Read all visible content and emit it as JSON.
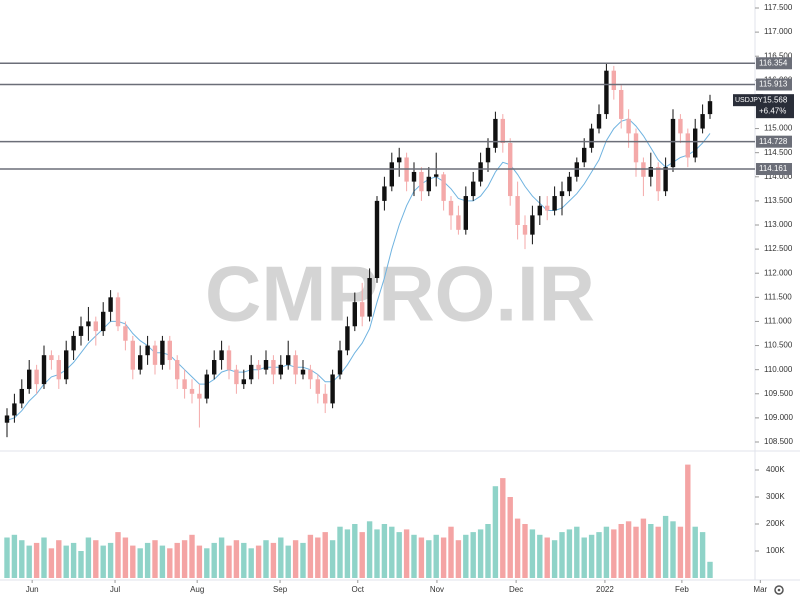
{
  "chart_data": {
    "type": "candlestick",
    "symbol": "USDJPY",
    "watermark": "CMPRO.IR",
    "last": {
      "value": 115.568,
      "change": "+6.47%"
    },
    "up_color": "#111111",
    "down_color": "#f4a9a9",
    "ma_color": "#6fb3e0",
    "volume_up_color": "#8fd3c8",
    "volume_down_color": "#f4a4a4",
    "level_color": "#6b6e78",
    "ylim": [
      108.334,
      117.666
    ],
    "yticks": [
      {
        "value": 108.5,
        "label": "108.500"
      },
      {
        "value": 109,
        "label": "109.000"
      },
      {
        "value": 109.5,
        "label": "109.500"
      },
      {
        "value": 110,
        "label": "110.000"
      },
      {
        "value": 110.5,
        "label": "110.500"
      },
      {
        "value": 111,
        "label": "111.000"
      },
      {
        "value": 111.5,
        "label": "111.500"
      },
      {
        "value": 112,
        "label": "112.000"
      },
      {
        "value": 112.5,
        "label": "112.500"
      },
      {
        "value": 113,
        "label": "113.000"
      },
      {
        "value": 113.5,
        "label": "113.500"
      },
      {
        "value": 114,
        "label": "114.000"
      },
      {
        "value": 114.5,
        "label": "114.500"
      },
      {
        "value": 115,
        "label": "115.000"
      },
      {
        "value": 115.5,
        "label": "115.500"
      },
      {
        "value": 116,
        "label": "116.000"
      },
      {
        "value": 116.5,
        "label": "116.500"
      },
      {
        "value": 117,
        "label": "117.000"
      },
      {
        "value": 117.5,
        "label": "117.500"
      }
    ],
    "levels": [
      116.354,
      115.913,
      114.728,
      114.161
    ],
    "xlim": [
      -0.946,
      101.08
    ],
    "xticks": [
      {
        "value": 3.4,
        "label": "Jun"
      },
      {
        "value": 14.6,
        "label": "Jul"
      },
      {
        "value": 25.7,
        "label": "Aug"
      },
      {
        "value": 36.9,
        "label": "Sep"
      },
      {
        "value": 47.4,
        "label": "Oct"
      },
      {
        "value": 58.1,
        "label": "Nov"
      },
      {
        "value": 68.8,
        "label": "Dec"
      },
      {
        "value": 80.8,
        "label": "2022"
      },
      {
        "value": 91.2,
        "label": "Feb"
      },
      {
        "value": 101.8,
        "label": "Mar"
      }
    ],
    "ohlc": [
      [
        108.9,
        109.2,
        108.6,
        109.05
      ],
      [
        109.05,
        109.5,
        108.9,
        109.3
      ],
      [
        109.3,
        109.8,
        109.2,
        109.6
      ],
      [
        109.6,
        110.2,
        109.5,
        110.0
      ],
      [
        110.0,
        110.1,
        109.5,
        109.7
      ],
      [
        109.7,
        110.5,
        109.6,
        110.3
      ],
      [
        110.3,
        110.4,
        110.0,
        110.2
      ],
      [
        110.2,
        110.3,
        109.6,
        109.8
      ],
      [
        109.8,
        110.6,
        109.7,
        110.4
      ],
      [
        110.4,
        110.8,
        110.2,
        110.7
      ],
      [
        110.7,
        111.1,
        110.5,
        110.9
      ],
      [
        110.9,
        111.3,
        110.6,
        111.0
      ],
      [
        111.0,
        111.1,
        110.5,
        110.8
      ],
      [
        110.8,
        111.4,
        110.7,
        111.2
      ],
      [
        111.2,
        111.65,
        111.0,
        111.5
      ],
      [
        111.5,
        111.6,
        110.8,
        110.9
      ],
      [
        110.9,
        111.0,
        110.4,
        110.6
      ],
      [
        110.6,
        110.7,
        109.8,
        110.0
      ],
      [
        110.0,
        110.5,
        109.9,
        110.3
      ],
      [
        110.3,
        110.7,
        110.1,
        110.5
      ],
      [
        110.5,
        110.6,
        109.9,
        110.1
      ],
      [
        110.1,
        110.7,
        110.0,
        110.6
      ],
      [
        110.6,
        110.7,
        110.0,
        110.2
      ],
      [
        110.2,
        110.3,
        109.6,
        109.8
      ],
      [
        109.8,
        110.0,
        109.4,
        109.6
      ],
      [
        109.6,
        109.8,
        109.3,
        109.5
      ],
      [
        109.5,
        109.7,
        108.8,
        109.4
      ],
      [
        109.4,
        110.0,
        109.3,
        109.9
      ],
      [
        109.9,
        110.4,
        109.8,
        110.2
      ],
      [
        110.2,
        110.6,
        110.0,
        110.4
      ],
      [
        110.4,
        110.5,
        109.8,
        110.0
      ],
      [
        110.0,
        110.1,
        109.5,
        109.7
      ],
      [
        109.7,
        110.0,
        109.6,
        109.8
      ],
      [
        109.8,
        110.3,
        109.7,
        110.1
      ],
      [
        110.1,
        110.2,
        109.8,
        110.0
      ],
      [
        110.0,
        110.4,
        109.9,
        110.2
      ],
      [
        110.2,
        110.3,
        109.7,
        109.9
      ],
      [
        109.9,
        110.3,
        109.8,
        110.1
      ],
      [
        110.1,
        110.6,
        110.0,
        110.3
      ],
      [
        110.3,
        110.4,
        109.7,
        109.9
      ],
      [
        109.9,
        110.2,
        109.8,
        110.0
      ],
      [
        110.0,
        110.1,
        109.6,
        109.8
      ],
      [
        109.8,
        109.9,
        109.3,
        109.5
      ],
      [
        109.5,
        109.7,
        109.1,
        109.3
      ],
      [
        109.3,
        110.0,
        109.2,
        109.9
      ],
      [
        109.9,
        110.6,
        109.8,
        110.4
      ],
      [
        110.4,
        111.1,
        110.3,
        110.9
      ],
      [
        110.9,
        111.6,
        110.8,
        111.4
      ],
      [
        111.4,
        111.8,
        110.9,
        111.1
      ],
      [
        111.1,
        112.1,
        111.0,
        111.9
      ],
      [
        111.9,
        113.6,
        111.8,
        113.5
      ],
      [
        113.5,
        114.0,
        113.3,
        113.8
      ],
      [
        113.8,
        114.5,
        113.7,
        114.3
      ],
      [
        114.3,
        114.6,
        114.0,
        114.4
      ],
      [
        114.4,
        114.5,
        113.7,
        113.9
      ],
      [
        113.9,
        114.3,
        113.6,
        114.1
      ],
      [
        114.1,
        114.2,
        113.5,
        113.7
      ],
      [
        113.7,
        114.2,
        113.6,
        114.0
      ],
      [
        114.0,
        114.5,
        113.8,
        114.05
      ],
      [
        114.05,
        114.1,
        113.3,
        113.5
      ],
      [
        113.5,
        113.6,
        112.9,
        113.2
      ],
      [
        113.2,
        113.4,
        112.8,
        112.9
      ],
      [
        112.9,
        113.8,
        112.8,
        113.6
      ],
      [
        113.6,
        114.1,
        113.5,
        113.9
      ],
      [
        113.9,
        114.5,
        113.8,
        114.3
      ],
      [
        114.3,
        114.8,
        114.1,
        114.6
      ],
      [
        114.6,
        115.35,
        114.5,
        115.2
      ],
      [
        115.2,
        115.3,
        114.5,
        114.7
      ],
      [
        114.7,
        114.8,
        113.4,
        113.6
      ],
      [
        113.6,
        113.9,
        112.7,
        113.0
      ],
      [
        113.0,
        113.2,
        112.5,
        112.8
      ],
      [
        112.8,
        113.4,
        112.6,
        113.2
      ],
      [
        113.2,
        113.6,
        113.0,
        113.4
      ],
      [
        113.4,
        113.6,
        113.1,
        113.3
      ],
      [
        113.3,
        113.8,
        113.2,
        113.6
      ],
      [
        113.6,
        113.9,
        113.2,
        113.7
      ],
      [
        113.7,
        114.1,
        113.6,
        114.0
      ],
      [
        114.0,
        114.4,
        113.9,
        114.3
      ],
      [
        114.3,
        114.8,
        114.2,
        114.6
      ],
      [
        114.6,
        115.1,
        114.5,
        115.0
      ],
      [
        115.0,
        115.5,
        114.9,
        115.3
      ],
      [
        115.3,
        116.35,
        115.2,
        116.2
      ],
      [
        116.2,
        116.3,
        115.6,
        115.8
      ],
      [
        115.8,
        115.9,
        115.0,
        115.2
      ],
      [
        115.2,
        115.4,
        114.6,
        114.9
      ],
      [
        114.9,
        115.0,
        114.0,
        114.3
      ],
      [
        114.3,
        114.4,
        113.6,
        114.0
      ],
      [
        114.0,
        114.5,
        113.8,
        114.2
      ],
      [
        114.2,
        114.3,
        113.5,
        113.7
      ],
      [
        113.7,
        114.4,
        113.6,
        114.2
      ],
      [
        114.2,
        115.4,
        114.1,
        115.2
      ],
      [
        115.2,
        115.3,
        114.7,
        114.9
      ],
      [
        114.9,
        115.0,
        114.2,
        114.4
      ],
      [
        114.4,
        115.2,
        114.3,
        115.0
      ],
      [
        115.0,
        115.5,
        114.9,
        115.3
      ],
      [
        115.3,
        115.7,
        115.2,
        115.568
      ]
    ],
    "ma": [
      108.95,
      109.0,
      109.15,
      109.35,
      109.5,
      109.7,
      109.85,
      109.9,
      110.0,
      110.15,
      110.35,
      110.55,
      110.7,
      110.85,
      111.0,
      111.0,
      110.95,
      110.75,
      110.6,
      110.5,
      110.35,
      110.35,
      110.3,
      110.15,
      110.0,
      109.85,
      109.7,
      109.7,
      109.8,
      109.95,
      110.0,
      109.95,
      109.95,
      110.0,
      110.0,
      110.05,
      110.05,
      110.05,
      110.1,
      110.05,
      110.05,
      110.0,
      109.9,
      109.75,
      109.75,
      109.9,
      110.1,
      110.35,
      110.55,
      110.85,
      111.4,
      111.9,
      112.5,
      113.0,
      113.4,
      113.7,
      113.85,
      113.95,
      114.0,
      113.9,
      113.75,
      113.55,
      113.5,
      113.5,
      113.6,
      113.8,
      114.1,
      114.3,
      114.25,
      114.05,
      113.8,
      113.6,
      113.45,
      113.3,
      113.3,
      113.35,
      113.5,
      113.65,
      113.85,
      114.1,
      114.35,
      114.75,
      115.0,
      115.15,
      115.2,
      115.05,
      114.85,
      114.6,
      114.35,
      114.2,
      114.3,
      114.4,
      114.45,
      114.55,
      114.7,
      114.9
    ],
    "volume": [
      150000,
      160000,
      140000,
      120000,
      130000,
      150000,
      110000,
      140000,
      120000,
      130000,
      100000,
      150000,
      140000,
      120000,
      130000,
      170000,
      150000,
      120000,
      110000,
      130000,
      140000,
      120000,
      110000,
      130000,
      140000,
      160000,
      120000,
      110000,
      130000,
      150000,
      120000,
      140000,
      130000,
      110000,
      120000,
      140000,
      130000,
      150000,
      120000,
      140000,
      130000,
      160000,
      150000,
      170000,
      140000,
      190000,
      180000,
      200000,
      170000,
      210000,
      180000,
      200000,
      190000,
      170000,
      180000,
      160000,
      150000,
      140000,
      160000,
      150000,
      190000,
      140000,
      160000,
      170000,
      180000,
      200000,
      340000,
      370000,
      300000,
      220000,
      200000,
      180000,
      160000,
      150000,
      140000,
      170000,
      180000,
      190000,
      150000,
      160000,
      170000,
      190000,
      180000,
      200000,
      210000,
      190000,
      220000,
      200000,
      190000,
      230000,
      210000,
      190000,
      420000,
      190000,
      170000,
      60000
    ],
    "vlim": [
      0,
      466700
    ],
    "vticks": [
      {
        "value": 100000,
        "label": "100K"
      },
      {
        "value": 200000,
        "label": "200K"
      },
      {
        "value": 300000,
        "label": "300K"
      },
      {
        "value": 400000,
        "label": "400K"
      }
    ]
  }
}
